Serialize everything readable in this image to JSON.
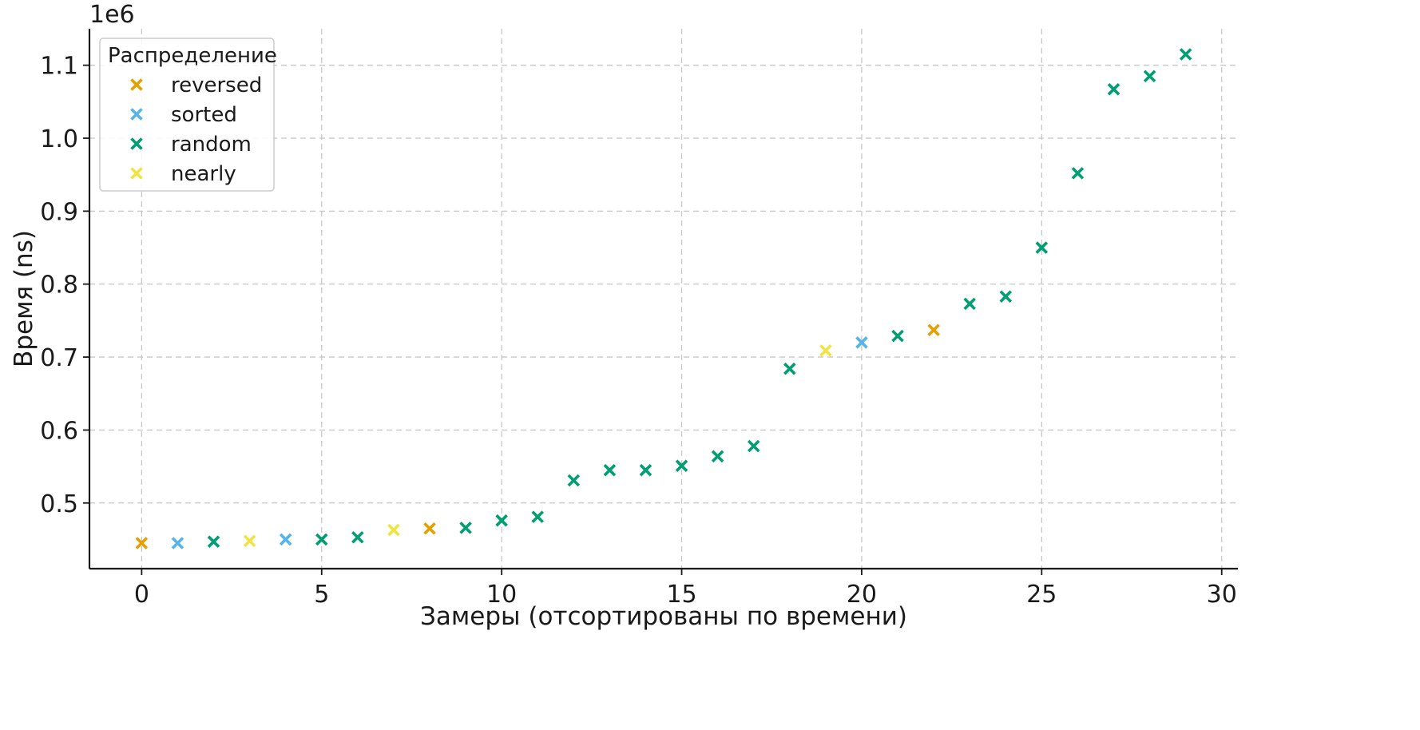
{
  "chart_data": {
    "type": "scatter",
    "title": "",
    "xlabel": "Замеры (отсортированы по времени)",
    "ylabel": "Время (ns)",
    "y_offset_label": "1e6",
    "y_scale": 1000000,
    "xlim": [
      -1.45,
      30.45
    ],
    "ylim": [
      410000,
      1150000
    ],
    "x_ticks": [
      0,
      5,
      10,
      15,
      20,
      25,
      30
    ],
    "y_ticks": [
      0.5,
      0.6,
      0.7,
      0.8,
      0.9,
      1.0,
      1.1
    ],
    "y_tick_labels": [
      "0.5",
      "0.6",
      "0.7",
      "0.8",
      "0.9",
      "1.0",
      "1.1"
    ],
    "grid": true,
    "marker": "x",
    "legend": {
      "title": "Распределение",
      "position": "top-left",
      "entries": [
        "reversed",
        "sorted",
        "random",
        "nearly"
      ]
    },
    "colors": {
      "reversed": "#E69F00",
      "sorted": "#56B4E9",
      "random": "#009E73",
      "nearly": "#F0E442"
    },
    "points": [
      {
        "x": 0,
        "y": 445000,
        "dist": "reversed"
      },
      {
        "x": 1,
        "y": 445000,
        "dist": "sorted"
      },
      {
        "x": 2,
        "y": 447000,
        "dist": "random"
      },
      {
        "x": 3,
        "y": 448000,
        "dist": "nearly"
      },
      {
        "x": 4,
        "y": 450000,
        "dist": "sorted"
      },
      {
        "x": 5,
        "y": 450000,
        "dist": "random"
      },
      {
        "x": 6,
        "y": 453000,
        "dist": "random"
      },
      {
        "x": 7,
        "y": 463000,
        "dist": "nearly"
      },
      {
        "x": 8,
        "y": 465000,
        "dist": "reversed"
      },
      {
        "x": 9,
        "y": 466000,
        "dist": "random"
      },
      {
        "x": 10,
        "y": 476000,
        "dist": "random"
      },
      {
        "x": 11,
        "y": 481000,
        "dist": "random"
      },
      {
        "x": 12,
        "y": 531000,
        "dist": "random"
      },
      {
        "x": 13,
        "y": 545000,
        "dist": "random"
      },
      {
        "x": 14,
        "y": 545000,
        "dist": "random"
      },
      {
        "x": 15,
        "y": 551000,
        "dist": "random"
      },
      {
        "x": 16,
        "y": 564000,
        "dist": "random"
      },
      {
        "x": 17,
        "y": 578000,
        "dist": "random"
      },
      {
        "x": 18,
        "y": 684000,
        "dist": "random"
      },
      {
        "x": 19,
        "y": 709000,
        "dist": "nearly"
      },
      {
        "x": 20,
        "y": 720000,
        "dist": "sorted"
      },
      {
        "x": 21,
        "y": 729000,
        "dist": "random"
      },
      {
        "x": 22,
        "y": 737000,
        "dist": "reversed"
      },
      {
        "x": 23,
        "y": 773000,
        "dist": "random"
      },
      {
        "x": 24,
        "y": 783000,
        "dist": "random"
      },
      {
        "x": 25,
        "y": 850000,
        "dist": "random"
      },
      {
        "x": 26,
        "y": 952000,
        "dist": "random"
      },
      {
        "x": 27,
        "y": 1067000,
        "dist": "random"
      },
      {
        "x": 28,
        "y": 1085000,
        "dist": "random"
      },
      {
        "x": 29,
        "y": 1115000,
        "dist": "random"
      }
    ]
  }
}
